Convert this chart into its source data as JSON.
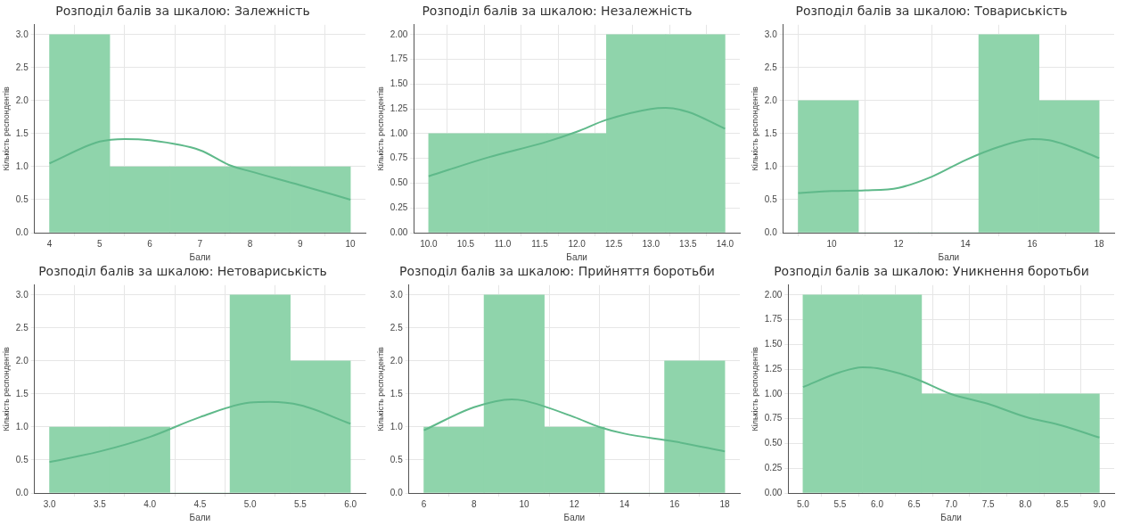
{
  "chart_data": [
    {
      "type": "histogram",
      "title": "Розподіл балів за шкалою: Залежність",
      "xlabel": "Бали",
      "ylabel": "Кількість респондентів",
      "bins": [
        4,
        5.2,
        6.4,
        7.6,
        8.8,
        10
      ],
      "values": [
        3,
        1,
        1,
        1,
        1
      ],
      "color": "#8fd4ab",
      "xlim": [
        3.7,
        10.3
      ],
      "xticks": [
        4,
        5,
        6,
        7,
        8,
        9,
        10
      ],
      "ylim": [
        0,
        3.15
      ],
      "yticks": [
        {
          "value": 0,
          "label": "0.0"
        },
        {
          "value": 0.5,
          "label": "0.5"
        },
        {
          "value": 1,
          "label": "1.0"
        },
        {
          "value": 1.5,
          "label": "1.5"
        },
        {
          "value": 2,
          "label": "2.0"
        },
        {
          "value": 2.5,
          "label": "2.5"
        },
        {
          "value": 3,
          "label": "3.0"
        }
      ],
      "grid": true,
      "series": [
        {
          "type": "line",
          "color": "#5fb98a",
          "x": [
            4,
            5,
            5.5,
            6,
            7,
            7.6,
            8,
            9,
            10
          ],
          "values": [
            1.05,
            1.38,
            1.42,
            1.4,
            1.25,
            1.02,
            0.93,
            0.72,
            0.5
          ]
        }
      ]
    },
    {
      "type": "histogram",
      "title": "Розподіл балів за шкалою: Незалежність",
      "xlabel": "Бали",
      "ylabel": "Кількість респондентів",
      "bins": [
        10,
        10.8,
        11.6,
        12.4,
        13.2,
        14
      ],
      "values": [
        1,
        1,
        1,
        2,
        2
      ],
      "color": "#8fd4ab",
      "xlim": [
        9.8,
        14.2
      ],
      "xticks": [
        {
          "value": 10,
          "label": "10.0"
        },
        {
          "value": 10.5,
          "label": "10.5"
        },
        {
          "value": 11,
          "label": "11.0"
        },
        {
          "value": 11.5,
          "label": "11.5"
        },
        {
          "value": 12,
          "label": "12.0"
        },
        {
          "value": 12.5,
          "label": "12.5"
        },
        {
          "value": 13,
          "label": "13.0"
        },
        {
          "value": 13.5,
          "label": "13.5"
        },
        {
          "value": 14,
          "label": "14.0"
        }
      ],
      "ylim": [
        0,
        2.1
      ],
      "yticks": [
        {
          "value": 0,
          "label": "0.00"
        },
        {
          "value": 0.25,
          "label": "0.25"
        },
        {
          "value": 0.5,
          "label": "0.50"
        },
        {
          "value": 0.75,
          "label": "0.75"
        },
        {
          "value": 1,
          "label": "1.00"
        },
        {
          "value": 1.25,
          "label": "1.25"
        },
        {
          "value": 1.5,
          "label": "1.50"
        },
        {
          "value": 1.75,
          "label": "1.75"
        },
        {
          "value": 2,
          "label": "2.00"
        }
      ],
      "grid": true,
      "series": [
        {
          "type": "line",
          "color": "#5fb98a",
          "x": [
            10,
            10.8,
            11.6,
            12,
            12.4,
            13,
            13.2,
            13.5,
            14
          ],
          "values": [
            0.57,
            0.76,
            0.92,
            1.02,
            1.14,
            1.25,
            1.26,
            1.22,
            1.05
          ]
        }
      ]
    },
    {
      "type": "histogram",
      "title": "Розподіл балів за шкалою: Товариськість",
      "xlabel": "Бали",
      "ylabel": "Кількість респондентів",
      "bins": [
        9,
        10.8,
        12.6,
        14.4,
        16.2,
        18
      ],
      "values": [
        2,
        0,
        0,
        3,
        2
      ],
      "color": "#8fd4ab",
      "xlim": [
        8.55,
        18.45
      ],
      "xticks": [
        10,
        12,
        14,
        16,
        18
      ],
      "ylim": [
        0,
        3.15
      ],
      "yticks": [
        {
          "value": 0,
          "label": "0.0"
        },
        {
          "value": 0.5,
          "label": "0.5"
        },
        {
          "value": 1,
          "label": "1.0"
        },
        {
          "value": 1.5,
          "label": "1.5"
        },
        {
          "value": 2,
          "label": "2.0"
        },
        {
          "value": 2.5,
          "label": "2.5"
        },
        {
          "value": 3,
          "label": "3.0"
        }
      ],
      "grid": true,
      "series": [
        {
          "type": "line",
          "color": "#5fb98a",
          "x": [
            9,
            10,
            11,
            12,
            13,
            14,
            15,
            16,
            16.5,
            17,
            18
          ],
          "values": [
            0.6,
            0.63,
            0.64,
            0.68,
            0.85,
            1.1,
            1.3,
            1.42,
            1.4,
            1.33,
            1.13
          ]
        }
      ]
    },
    {
      "type": "histogram",
      "title": "Розподіл балів за шкалою: Нетовариськість",
      "xlabel": "Бали",
      "ylabel": "Кількість респондентів",
      "bins": [
        3,
        3.6,
        4.2,
        4.8,
        5.4,
        6
      ],
      "values": [
        1,
        1,
        0,
        3,
        2
      ],
      "color": "#8fd4ab",
      "xlim": [
        2.85,
        6.15
      ],
      "xticks": [
        {
          "value": 3,
          "label": "3.0"
        },
        {
          "value": 3.5,
          "label": "3.5"
        },
        {
          "value": 4,
          "label": "4.0"
        },
        {
          "value": 4.5,
          "label": "4.5"
        },
        {
          "value": 5,
          "label": "5.0"
        },
        {
          "value": 5.5,
          "label": "5.5"
        },
        {
          "value": 6,
          "label": "6.0"
        }
      ],
      "ylim": [
        0,
        3.15
      ],
      "yticks": [
        {
          "value": 0,
          "label": "0.0"
        },
        {
          "value": 0.5,
          "label": "0.5"
        },
        {
          "value": 1,
          "label": "1.0"
        },
        {
          "value": 1.5,
          "label": "1.5"
        },
        {
          "value": 2,
          "label": "2.0"
        },
        {
          "value": 2.5,
          "label": "2.5"
        },
        {
          "value": 3,
          "label": "3.0"
        }
      ],
      "grid": true,
      "series": [
        {
          "type": "line",
          "color": "#5fb98a",
          "x": [
            3,
            3.5,
            4,
            4.5,
            5,
            5.2,
            5.5,
            6
          ],
          "values": [
            0.47,
            0.63,
            0.85,
            1.15,
            1.37,
            1.38,
            1.33,
            1.05
          ]
        }
      ]
    },
    {
      "type": "histogram",
      "title": "Розподіл балів за шкалою: Прийняття боротьби",
      "xlabel": "Бали",
      "ylabel": "Кількість респондентів",
      "bins": [
        6,
        8.4,
        10.8,
        13.2,
        15.6,
        18
      ],
      "values": [
        1,
        3,
        1,
        0,
        2
      ],
      "color": "#8fd4ab",
      "xlim": [
        5.4,
        18.6
      ],
      "xticks": [
        6,
        8,
        10,
        12,
        14,
        16,
        18
      ],
      "ylim": [
        0,
        3.15
      ],
      "yticks": [
        {
          "value": 0,
          "label": "0.0"
        },
        {
          "value": 0.5,
          "label": "0.5"
        },
        {
          "value": 1,
          "label": "1.0"
        },
        {
          "value": 1.5,
          "label": "1.5"
        },
        {
          "value": 2,
          "label": "2.0"
        },
        {
          "value": 2.5,
          "label": "2.5"
        },
        {
          "value": 3,
          "label": "3.0"
        }
      ],
      "grid": true,
      "series": [
        {
          "type": "line",
          "color": "#5fb98a",
          "x": [
            6,
            8,
            9.5,
            10,
            12,
            13,
            14,
            16,
            18
          ],
          "values": [
            0.95,
            1.3,
            1.42,
            1.4,
            1.15,
            1.0,
            0.9,
            0.78,
            0.63
          ]
        }
      ]
    },
    {
      "type": "histogram",
      "title": "Розподіл балів за шкалою: Уникнення боротьби",
      "xlabel": "Бали",
      "ylabel": "Кількість респондентів",
      "bins": [
        5,
        5.8,
        6.6,
        7.4,
        8.2,
        9
      ],
      "values": [
        2,
        2,
        1,
        1,
        1
      ],
      "color": "#8fd4ab",
      "xlim": [
        4.8,
        9.2
      ],
      "xticks": [
        {
          "value": 5,
          "label": "5.0"
        },
        {
          "value": 5.5,
          "label": "5.5"
        },
        {
          "value": 6,
          "label": "6.0"
        },
        {
          "value": 6.5,
          "label": "6.5"
        },
        {
          "value": 7,
          "label": "7.0"
        },
        {
          "value": 7.5,
          "label": "7.5"
        },
        {
          "value": 8,
          "label": "8.0"
        },
        {
          "value": 8.5,
          "label": "8.5"
        },
        {
          "value": 9,
          "label": "9.0"
        }
      ],
      "ylim": [
        0,
        2.1
      ],
      "yticks": [
        {
          "value": 0,
          "label": "0.00"
        },
        {
          "value": 0.25,
          "label": "0.25"
        },
        {
          "value": 0.5,
          "label": "0.50"
        },
        {
          "value": 0.75,
          "label": "0.75"
        },
        {
          "value": 1,
          "label": "1.00"
        },
        {
          "value": 1.25,
          "label": "1.25"
        },
        {
          "value": 1.5,
          "label": "1.50"
        },
        {
          "value": 1.75,
          "label": "1.75"
        },
        {
          "value": 2,
          "label": "2.00"
        }
      ],
      "grid": true,
      "series": [
        {
          "type": "line",
          "color": "#5fb98a",
          "x": [
            5,
            5.5,
            5.8,
            6,
            6.5,
            7,
            7.5,
            8,
            8.5,
            9
          ],
          "values": [
            1.07,
            1.22,
            1.27,
            1.26,
            1.16,
            1.0,
            0.9,
            0.77,
            0.68,
            0.56
          ]
        }
      ]
    }
  ]
}
